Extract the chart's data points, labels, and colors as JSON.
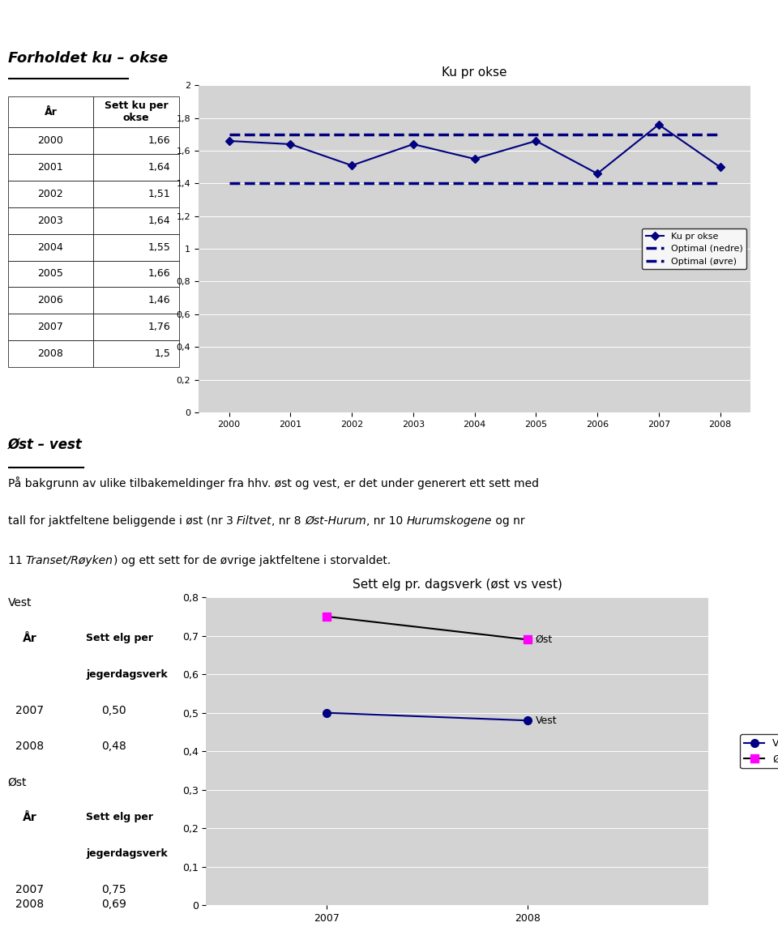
{
  "title1": "Forholdet ku – okse",
  "ku_years": [
    2000,
    2001,
    2002,
    2003,
    2004,
    2005,
    2006,
    2007,
    2008
  ],
  "ku_values": [
    1.66,
    1.64,
    1.51,
    1.64,
    1.55,
    1.66,
    1.46,
    1.76,
    1.5
  ],
  "ku_table_years": [
    2000,
    2001,
    2002,
    2003,
    2004,
    2005,
    2006,
    2007,
    2008
  ],
  "ku_table_values": [
    "1,66",
    "1,64",
    "1,51",
    "1,64",
    "1,55",
    "1,66",
    "1,46",
    "1,76",
    "1,5"
  ],
  "optimal_lower": 1.4,
  "optimal_upper": 1.7,
  "chart1_title": "Ku pr okse",
  "chart1_ylabel_ticks": [
    0,
    0.2,
    0.4,
    0.6,
    0.8,
    1.0,
    1.2,
    1.4,
    1.6,
    1.8,
    2.0
  ],
  "chart1_ylim": [
    0,
    2.0
  ],
  "legend1_ku": "Ku pr okse",
  "legend1_lower": "Optimal (nedre)",
  "legend1_upper": "Optimal (øvre)",
  "section2_title": "Øst – vest",
  "section2_text": "På bakgrunn av ulike tilbakemeldinger fra hhv. øst og vest, er det under generert ett sett med\ntall for jaktfeltene beliggende i øst (nr 3 Filtvet, nr 8 Øst-Hurum, nr 10 Hurumskogene og nr\n11 Transet/Røyken) og ett sett for de øvrige jaktfeltene i storvaldet.",
  "vest_years": [
    2007,
    2008
  ],
  "vest_values": [
    0.5,
    0.48
  ],
  "ost_years": [
    2007,
    2008
  ],
  "ost_values": [
    0.75,
    0.69
  ],
  "chart2_title": "Sett elg pr. dagsverk (øst vs vest)",
  "chart2_ylim": [
    0,
    0.8
  ],
  "chart2_yticks": [
    0,
    0.1,
    0.2,
    0.3,
    0.4,
    0.5,
    0.6,
    0.7,
    0.8
  ],
  "legend2_vest": "Vest",
  "legend2_ost": "Øst",
  "ku_line_color": "#000080",
  "optimal_color": "#000080",
  "vest_color": "#000080",
  "ost_color": "#FF00FF",
  "ost_line_color": "#000000",
  "plot_bg": "#D3D3D3"
}
